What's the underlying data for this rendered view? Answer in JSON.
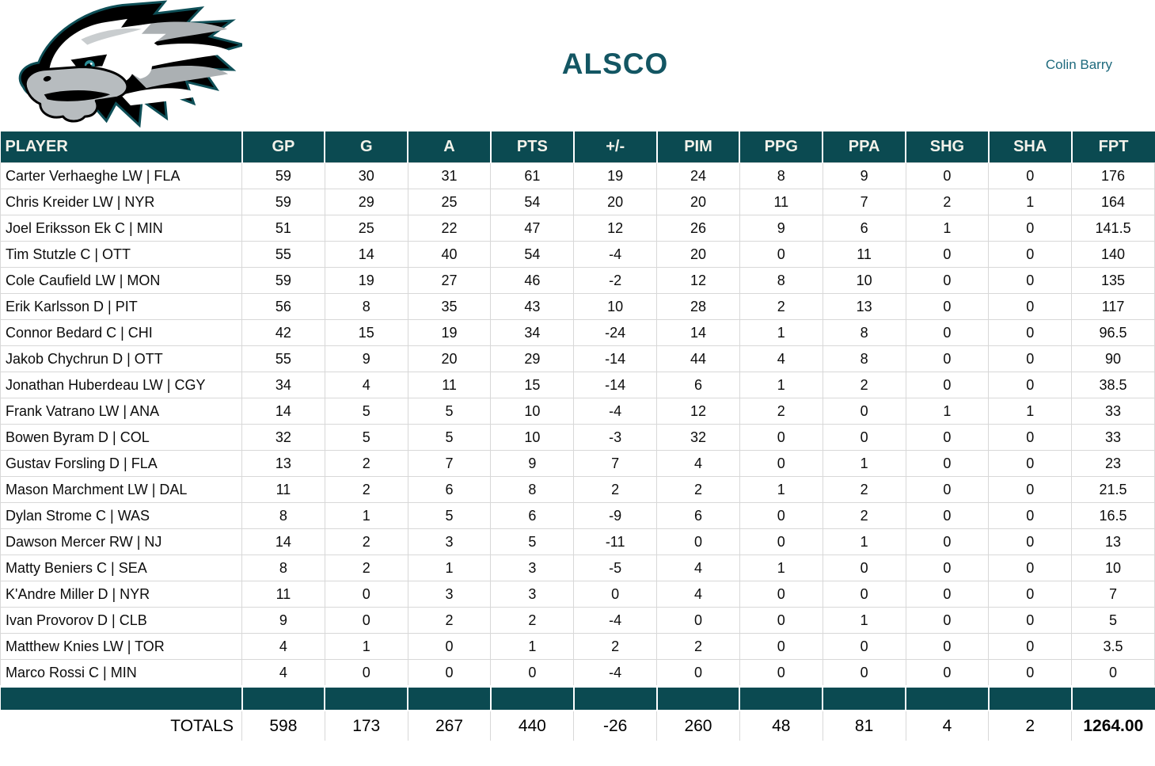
{
  "page": {
    "title": "ALSCO",
    "owner": "Colin Barry",
    "logo": "eagle-logo"
  },
  "colors": {
    "header_bg": "#0b4a51",
    "header_text": "#f3f2ea",
    "title_text": "#135663",
    "owner_text": "#1e6a7d",
    "row_border": "#d8d8d8",
    "logo_teal": "#0e4f57",
    "logo_silver": "#abb0b3"
  },
  "table": {
    "columns": [
      "PLAYER",
      "GP",
      "G",
      "A",
      "PTS",
      "+/-",
      "PIM",
      "PPG",
      "PPA",
      "SHG",
      "SHA",
      "FPT"
    ],
    "players": [
      {
        "name": "Carter Verhaeghe LW | FLA",
        "stats": [
          59,
          30,
          31,
          61,
          19,
          24,
          8,
          9,
          0,
          0,
          176
        ]
      },
      {
        "name": "Chris Kreider LW | NYR",
        "stats": [
          59,
          29,
          25,
          54,
          20,
          20,
          11,
          7,
          2,
          1,
          164
        ]
      },
      {
        "name": "Joel Eriksson Ek C | MIN",
        "stats": [
          51,
          25,
          22,
          47,
          12,
          26,
          9,
          6,
          1,
          0,
          141.5
        ]
      },
      {
        "name": "Tim Stutzle C | OTT",
        "stats": [
          55,
          14,
          40,
          54,
          -4,
          20,
          0,
          11,
          0,
          0,
          140
        ]
      },
      {
        "name": "Cole Caufield LW | MON",
        "stats": [
          59,
          19,
          27,
          46,
          -2,
          12,
          8,
          10,
          0,
          0,
          135
        ]
      },
      {
        "name": "Erik Karlsson D | PIT",
        "stats": [
          56,
          8,
          35,
          43,
          10,
          28,
          2,
          13,
          0,
          0,
          117
        ]
      },
      {
        "name": "Connor Bedard C | CHI",
        "stats": [
          42,
          15,
          19,
          34,
          -24,
          14,
          1,
          8,
          0,
          0,
          96.5
        ]
      },
      {
        "name": "Jakob Chychrun D | OTT",
        "stats": [
          55,
          9,
          20,
          29,
          -14,
          44,
          4,
          8,
          0,
          0,
          90
        ]
      },
      {
        "name": "Jonathan Huberdeau LW | CGY",
        "stats": [
          34,
          4,
          11,
          15,
          -14,
          6,
          1,
          2,
          0,
          0,
          38.5
        ]
      },
      {
        "name": "Frank Vatrano LW | ANA",
        "stats": [
          14,
          5,
          5,
          10,
          -4,
          12,
          2,
          0,
          1,
          1,
          33
        ]
      },
      {
        "name": "Bowen Byram D | COL",
        "stats": [
          32,
          5,
          5,
          10,
          -3,
          32,
          0,
          0,
          0,
          0,
          33
        ]
      },
      {
        "name": "Gustav Forsling D | FLA",
        "stats": [
          13,
          2,
          7,
          9,
          7,
          4,
          0,
          1,
          0,
          0,
          23
        ]
      },
      {
        "name": "Mason Marchment LW | DAL",
        "stats": [
          11,
          2,
          6,
          8,
          2,
          2,
          1,
          2,
          0,
          0,
          21.5
        ]
      },
      {
        "name": "Dylan Strome C | WAS",
        "stats": [
          8,
          1,
          5,
          6,
          -9,
          6,
          0,
          2,
          0,
          0,
          16.5
        ]
      },
      {
        "name": "Dawson Mercer RW | NJ",
        "stats": [
          14,
          2,
          3,
          5,
          -11,
          0,
          0,
          1,
          0,
          0,
          13
        ]
      },
      {
        "name": "Matty Beniers C | SEA",
        "stats": [
          8,
          2,
          1,
          3,
          -5,
          4,
          1,
          0,
          0,
          0,
          10
        ]
      },
      {
        "name": "K'Andre Miller D | NYR",
        "stats": [
          11,
          0,
          3,
          3,
          0,
          4,
          0,
          0,
          0,
          0,
          7
        ]
      },
      {
        "name": "Ivan Provorov D | CLB",
        "stats": [
          9,
          0,
          2,
          2,
          -4,
          0,
          0,
          1,
          0,
          0,
          5
        ]
      },
      {
        "name": "Matthew Knies LW | TOR",
        "stats": [
          4,
          1,
          0,
          1,
          2,
          2,
          0,
          0,
          0,
          0,
          3.5
        ]
      },
      {
        "name": "Marco Rossi C | MIN",
        "stats": [
          4,
          0,
          0,
          0,
          -4,
          0,
          0,
          0,
          0,
          0,
          0
        ]
      }
    ],
    "totals_label": "TOTALS",
    "totals": [
      "598",
      "173",
      "267",
      "440",
      "-26",
      "260",
      "48",
      "81",
      "4",
      "2",
      "1264.00"
    ]
  }
}
